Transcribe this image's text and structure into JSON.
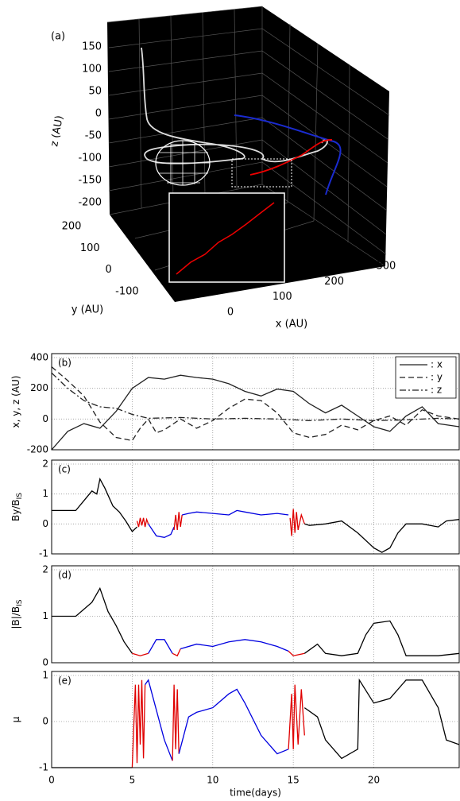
{
  "chart_data": [
    {
      "type": "3d-line",
      "panel": "(a)",
      "zlabel": "z (AU)",
      "ylabel": "y (AU)",
      "xlabel": "x (AU)",
      "zticks": [
        150,
        100,
        50,
        0,
        -50,
        -100,
        -150,
        -200
      ],
      "yticks": [
        200,
        100,
        0,
        -100
      ],
      "xticks": [
        0,
        100,
        200,
        300
      ]
    },
    {
      "type": "line",
      "panel": "(b)",
      "ylabel": "x, y, z (AU)",
      "ylim": [
        -200,
        400
      ],
      "yticks": [
        -200,
        0,
        200,
        400
      ],
      "xlim": [
        0,
        25.3
      ],
      "xticks": [
        0,
        5,
        10,
        15,
        20
      ],
      "grid": true,
      "legend": "upper right",
      "series": [
        {
          "name": ": x",
          "color": "#222",
          "dash": "solid",
          "x": [
            0,
            1,
            2,
            3,
            4,
            5,
            6,
            7,
            8,
            9,
            10,
            11,
            12,
            13,
            14,
            15,
            16,
            17,
            18,
            19,
            20,
            21,
            22,
            23,
            24,
            25.3
          ],
          "values": [
            -200,
            -80,
            -30,
            -60,
            50,
            200,
            270,
            260,
            285,
            270,
            260,
            230,
            180,
            150,
            195,
            180,
            100,
            40,
            90,
            20,
            -50,
            -80,
            20,
            80,
            -30,
            -50
          ]
        },
        {
          "name": ": y",
          "color": "#222",
          "dash": "dashed",
          "x": [
            0,
            1,
            2,
            3,
            4,
            5,
            5.5,
            6,
            6.5,
            7,
            8,
            9,
            10,
            11,
            12,
            13,
            14,
            15,
            16,
            17,
            18,
            19,
            20,
            21,
            22,
            23,
            24,
            25.3
          ],
          "values": [
            340,
            250,
            150,
            -20,
            -120,
            -140,
            -60,
            0,
            -90,
            -70,
            0,
            -60,
            -10,
            70,
            130,
            120,
            40,
            -90,
            -120,
            -100,
            -40,
            -70,
            -10,
            20,
            -40,
            60,
            20,
            0
          ]
        },
        {
          "name": ": z",
          "color": "#222",
          "dash": "dashdot",
          "x": [
            0,
            1,
            2,
            3,
            4,
            5,
            6,
            8,
            10,
            12,
            14,
            16,
            18,
            20,
            22,
            24,
            25.3
          ],
          "values": [
            300,
            200,
            120,
            80,
            70,
            30,
            5,
            10,
            0,
            5,
            0,
            -10,
            0,
            -10,
            -5,
            5,
            0
          ]
        }
      ]
    },
    {
      "type": "line",
      "panel": "(c)",
      "ylabel": "By/B",
      "ylabel_sub": "IS",
      "ylim": [
        -1,
        2
      ],
      "yticks": [
        -1,
        0,
        1,
        2
      ],
      "xlim": [
        0,
        25.3
      ],
      "xticks": [
        0,
        5,
        10,
        15,
        20
      ],
      "grid": true,
      "series": [
        {
          "color": "#000",
          "x": [
            0,
            1.5,
            2.5,
            2.8,
            3,
            3.3,
            3.8,
            4.2,
            4.6,
            5,
            5.3
          ],
          "values": [
            0.45,
            0.45,
            1.1,
            1.0,
            1.5,
            1.2,
            0.6,
            0.4,
            0.1,
            -0.25,
            -0.1
          ]
        },
        {
          "color": "#e00000",
          "x": [
            5.3,
            5.4,
            5.5,
            5.6,
            5.7,
            5.8,
            5.9,
            6
          ],
          "values": [
            0.1,
            -0.1,
            0.2,
            -0.05,
            0.2,
            -0.1,
            0.15,
            0.0
          ]
        },
        {
          "color": "#0000e0",
          "x": [
            6,
            6.5,
            7,
            7.4,
            7.6
          ],
          "values": [
            0.0,
            -0.4,
            -0.45,
            -0.35,
            -0.1
          ]
        },
        {
          "color": "#e00000",
          "x": [
            7.6,
            7.7,
            7.8,
            7.9,
            8,
            8.1
          ],
          "values": [
            -0.2,
            0.3,
            -0.2,
            0.4,
            -0.1,
            0.3
          ]
        },
        {
          "color": "#0000e0",
          "x": [
            8.1,
            8.5,
            9,
            10,
            11,
            11.5,
            12,
            13,
            14,
            14.7
          ],
          "values": [
            0.3,
            0.35,
            0.4,
            0.35,
            0.3,
            0.45,
            0.4,
            0.3,
            0.35,
            0.3
          ]
        },
        {
          "color": "#e00000",
          "x": [
            14.8,
            14.9,
            15,
            15.1,
            15.2,
            15.3,
            15.5,
            15.7
          ],
          "values": [
            0.2,
            -0.4,
            0.5,
            -0.3,
            0.4,
            -0.2,
            0.3,
            0.0
          ]
        },
        {
          "color": "#000",
          "x": [
            15.7,
            16,
            17,
            18,
            19,
            20,
            20.5,
            21,
            21.5,
            22,
            23,
            24,
            24.5,
            25.3
          ],
          "values": [
            0.0,
            -0.05,
            0,
            0.1,
            -0.3,
            -0.8,
            -0.95,
            -0.8,
            -0.3,
            0,
            0,
            -0.1,
            0.1,
            0.15
          ]
        }
      ]
    },
    {
      "type": "line",
      "panel": "(d)",
      "ylabel": "|B|/B",
      "ylabel_sub": "IS",
      "ylim": [
        0,
        2
      ],
      "yticks": [
        0,
        1,
        2
      ],
      "xlim": [
        0,
        25.3
      ],
      "xticks": [
        0,
        5,
        10,
        15,
        20
      ],
      "grid": true,
      "series": [
        {
          "color": "#000",
          "x": [
            0,
            1.5,
            2.5,
            3,
            3.5,
            4,
            4.5,
            5
          ],
          "values": [
            1,
            1,
            1.3,
            1.6,
            1.1,
            0.8,
            0.45,
            0.2
          ]
        },
        {
          "color": "#e00000",
          "x": [
            5,
            5.5,
            6
          ],
          "values": [
            0.2,
            0.15,
            0.2
          ]
        },
        {
          "color": "#0000e0",
          "x": [
            6,
            6.5,
            7,
            7.5
          ],
          "values": [
            0.2,
            0.5,
            0.5,
            0.2
          ]
        },
        {
          "color": "#e00000",
          "x": [
            7.5,
            7.8,
            8
          ],
          "values": [
            0.2,
            0.15,
            0.3
          ]
        },
        {
          "color": "#0000e0",
          "x": [
            8,
            9,
            10,
            11,
            12,
            13,
            14,
            14.7
          ],
          "values": [
            0.3,
            0.4,
            0.35,
            0.45,
            0.5,
            0.45,
            0.35,
            0.25
          ]
        },
        {
          "color": "#e00000",
          "x": [
            14.7,
            15,
            15.7
          ],
          "values": [
            0.25,
            0.15,
            0.2
          ]
        },
        {
          "color": "#000",
          "x": [
            15.7,
            16.5,
            17,
            18,
            19,
            19.5,
            20,
            21,
            21.5,
            22,
            24,
            25.3
          ],
          "values": [
            0.2,
            0.4,
            0.2,
            0.15,
            0.2,
            0.6,
            0.85,
            0.9,
            0.6,
            0.15,
            0.15,
            0.2
          ]
        }
      ]
    },
    {
      "type": "line",
      "panel": "(e)",
      "ylabel": "μ",
      "xlabel": "time(days)",
      "ylim": [
        -1,
        1
      ],
      "yticks": [
        -1,
        0,
        1
      ],
      "xlim": [
        0,
        25.3
      ],
      "xticks": [
        0,
        5,
        10,
        15,
        20
      ],
      "grid": true,
      "series": [
        {
          "color": "#000",
          "x": [
            0,
            4,
            5
          ],
          "values": [
            -1,
            -1,
            -1
          ]
        },
        {
          "color": "#e00000",
          "x": [
            5,
            5.2,
            5.3,
            5.4,
            5.5,
            5.6,
            5.7,
            5.8
          ],
          "values": [
            -1,
            0.8,
            -0.9,
            0.8,
            -0.5,
            0.9,
            -0.8,
            0.8
          ]
        },
        {
          "color": "#0000e0",
          "x": [
            5.8,
            6,
            7,
            7.5
          ],
          "values": [
            0.8,
            0.9,
            -0.4,
            -0.85
          ]
        },
        {
          "color": "#e00000",
          "x": [
            7.5,
            7.6,
            7.7,
            7.8,
            7.9
          ],
          "values": [
            -0.85,
            0.8,
            -0.6,
            0.7,
            -0.7
          ]
        },
        {
          "color": "#0000e0",
          "x": [
            7.9,
            8.5,
            9,
            10,
            11,
            11.5,
            12,
            13,
            14,
            14.7
          ],
          "values": [
            -0.7,
            0.1,
            0.2,
            0.3,
            0.6,
            0.7,
            0.4,
            -0.3,
            -0.7,
            -0.6
          ]
        },
        {
          "color": "#e00000",
          "x": [
            14.7,
            14.9,
            15,
            15.1,
            15.3,
            15.5,
            15.7
          ],
          "values": [
            -0.6,
            0.6,
            -0.6,
            0.8,
            -0.5,
            0.7,
            -0.3
          ]
        },
        {
          "color": "#000",
          "x": [
            15.7,
            16.5,
            17,
            18,
            19,
            19.1,
            20,
            21,
            22,
            23,
            24,
            24.5,
            25.3
          ],
          "values": [
            0.3,
            0.1,
            -0.4,
            -0.8,
            -0.6,
            0.9,
            0.4,
            0.5,
            0.9,
            0.9,
            0.3,
            -0.4,
            -0.5
          ]
        }
      ]
    }
  ]
}
